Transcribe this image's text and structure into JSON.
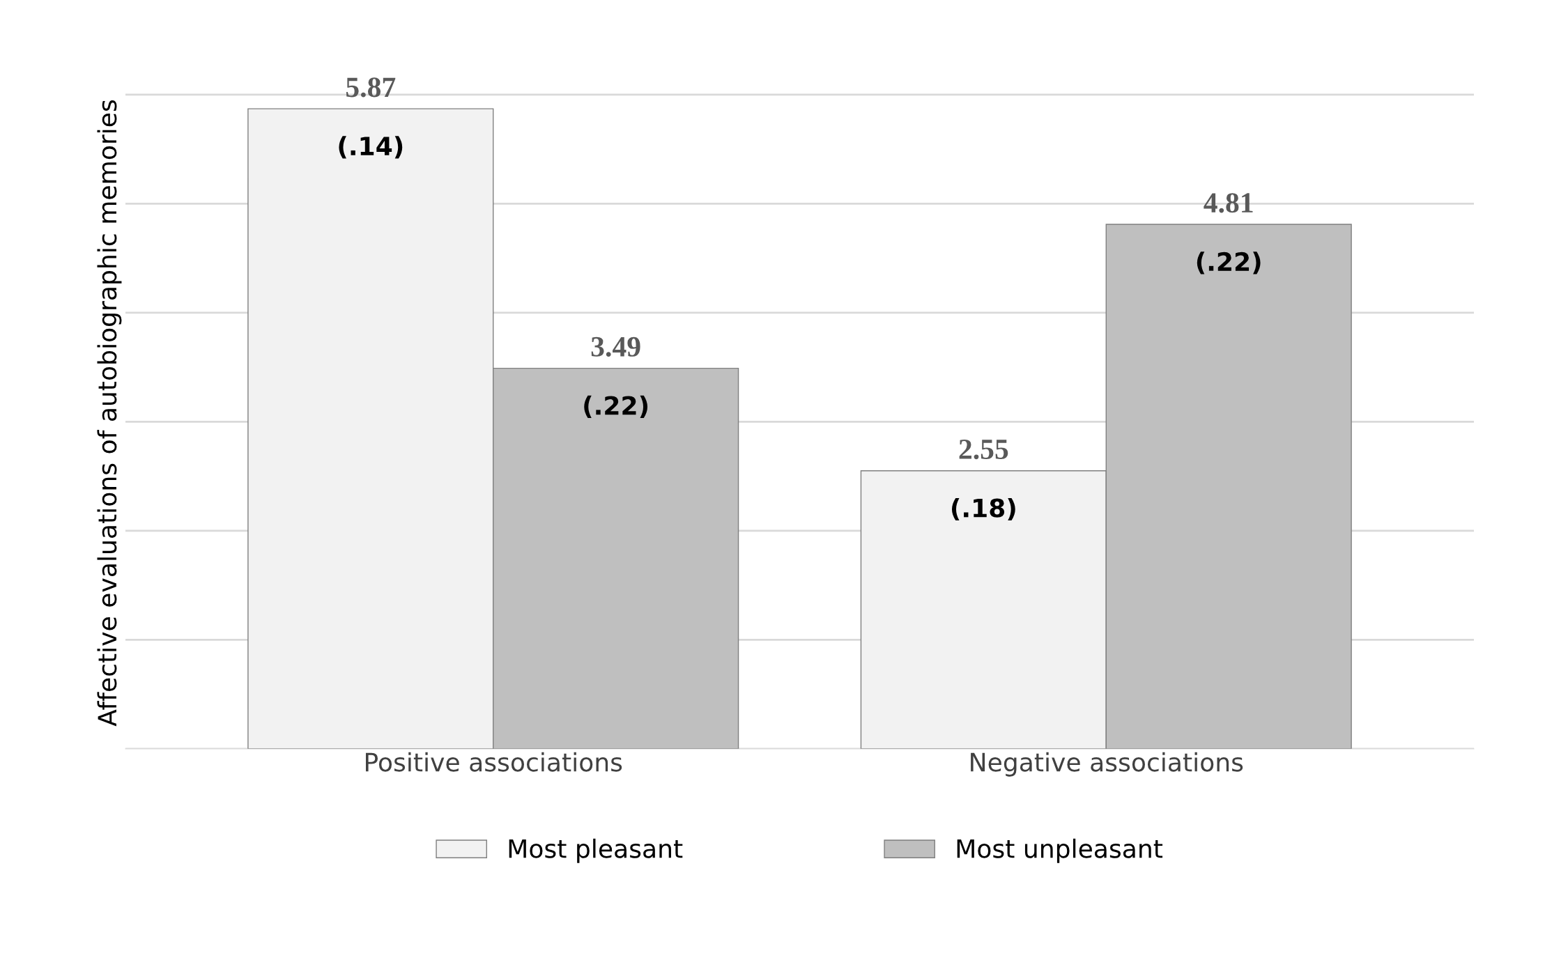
{
  "chart_data": {
    "type": "bar",
    "ylabel": "Affective evaluations of autobiographic memories",
    "categories": [
      "Positive associations",
      "Negative associations"
    ],
    "series": [
      {
        "name": "Most pleasant",
        "color": "#f2f2f2",
        "values": [
          5.87,
          2.55
        ]
      },
      {
        "name": "Most unpleasant",
        "color": "#bfbfbf",
        "values": [
          3.49,
          4.81
        ]
      }
    ],
    "data_labels": true,
    "annotations": [
      "(.14)",
      "(.18)",
      "(.22)",
      "(.22)"
    ],
    "grid": "y",
    "legend": "bottom"
  }
}
